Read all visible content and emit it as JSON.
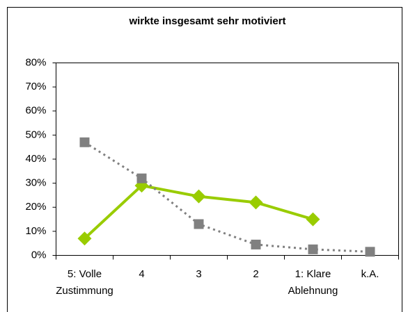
{
  "chart_data": {
    "type": "line",
    "title": "wirkte insgesamt sehr motiviert",
    "categories": [
      "5: Volle\nZustimmung",
      "4",
      "3",
      "2",
      "1: Klare\nAblehnung",
      "k.A."
    ],
    "series": [
      {
        "color": "#99cc00",
        "marker": "diamond",
        "dash": false,
        "values": [
          7,
          29,
          24.5,
          22,
          15,
          null
        ]
      },
      {
        "color": "#808080",
        "marker": "square",
        "dash": true,
        "values": [
          47,
          32,
          13,
          4.5,
          2.5,
          1.5
        ]
      }
    ],
    "ylim": [
      0,
      80
    ],
    "yticks": [
      {
        "value": 0,
        "label": "0%"
      },
      {
        "value": 10,
        "label": "10%"
      },
      {
        "value": 20,
        "label": "20%"
      },
      {
        "value": 30,
        "label": "30%"
      },
      {
        "value": 40,
        "label": "40%"
      },
      {
        "value": 50,
        "label": "50%"
      },
      {
        "value": 60,
        "label": "60%"
      },
      {
        "value": 70,
        "label": "70%"
      },
      {
        "value": 80,
        "label": "80%"
      }
    ]
  }
}
